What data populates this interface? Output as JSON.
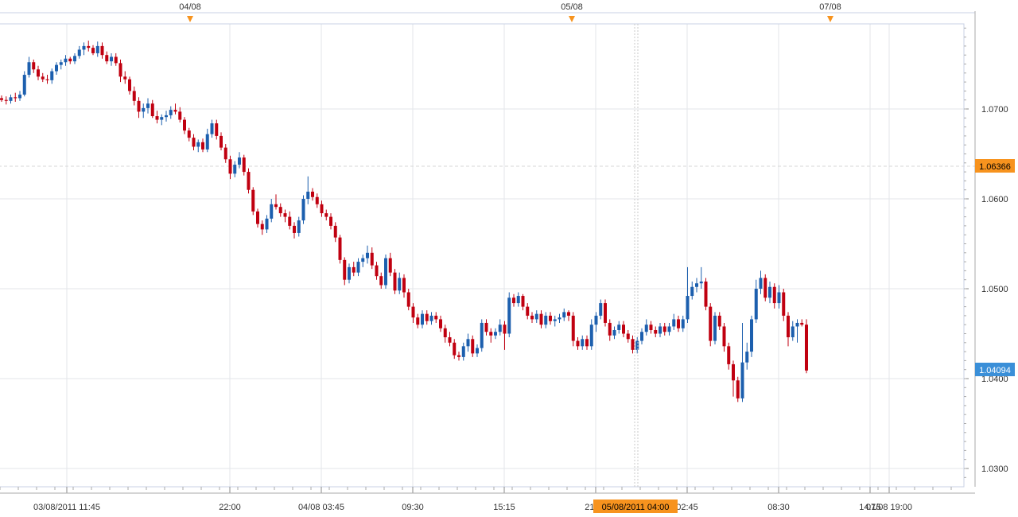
{
  "colors": {
    "background": "#ffffff",
    "plot_border": "#c8d2e6",
    "grid": "#e3e6ea",
    "up_candle": "#1c5fae",
    "down_candle": "#c00010",
    "last_price_badge": "#f7931e",
    "current_price_badge": "#3a8fd8",
    "event_marker": "#f7931e"
  },
  "top_axis": {
    "events": [
      {
        "label": "04/08",
        "time_h": 34.25
      },
      {
        "label": "05/08",
        "time_h": 59.25
      },
      {
        "label": "07/08",
        "time_h": 75.75
      }
    ]
  },
  "bottom_axis": {
    "ticks": [
      {
        "label": "03/08/2011 11:45",
        "time_h": 11.75
      },
      {
        "label": "22:00",
        "time_h": 22.0
      },
      {
        "label": "04/08 03:45",
        "time_h": 27.75
      },
      {
        "label": "09:30",
        "time_h": 33.5
      },
      {
        "label": "15:15",
        "time_h": 39.25
      },
      {
        "label": "21:00",
        "time_h": 45.0
      },
      {
        "label": "02:45",
        "time_h": 50.75
      },
      {
        "label": "08:30",
        "time_h": 56.5
      },
      {
        "label": "14:15",
        "time_h": 62.25
      },
      {
        "label": "07/08 19:00",
        "time_h": 67.0
      }
    ],
    "crosshair_label": "05/08/2011 04:00",
    "crosshair_time_h": 52.0
  },
  "price_badges": {
    "last": "1.06366",
    "current": "1.04094"
  },
  "chart_data": {
    "type": "candlestick",
    "ylim": [
      1.028,
      1.0795
    ],
    "grid": true,
    "y_ticks": [
      "1.0300",
      "1.0400",
      "1.0500",
      "1.0600",
      "1.0700"
    ],
    "series": [
      {
        "candles": [
          [
            1.0712,
            1.0715,
            1.0708,
            1.071
          ],
          [
            1.071,
            1.0714,
            1.0705,
            1.0709
          ],
          [
            1.0709,
            1.0716,
            1.0706,
            1.0713
          ],
          [
            1.0713,
            1.0718,
            1.0708,
            1.0712
          ],
          [
            1.0712,
            1.072,
            1.0709,
            1.0716
          ],
          [
            1.0716,
            1.0742,
            1.0714,
            1.0738
          ],
          [
            1.0738,
            1.0758,
            1.0735,
            1.0752
          ],
          [
            1.0752,
            1.0755,
            1.074,
            1.0744
          ],
          [
            1.0744,
            1.0748,
            1.0732,
            1.0736
          ],
          [
            1.0736,
            1.074,
            1.073,
            1.0733
          ],
          [
            1.0733,
            1.0738,
            1.0728,
            1.0732
          ],
          [
            1.0732,
            1.0745,
            1.0728,
            1.0742
          ],
          [
            1.0742,
            1.0752,
            1.0738,
            1.0749
          ],
          [
            1.0749,
            1.0755,
            1.0744,
            1.0752
          ],
          [
            1.0752,
            1.076,
            1.0748,
            1.0756
          ],
          [
            1.0756,
            1.0758,
            1.075,
            1.0753
          ],
          [
            1.0753,
            1.0762,
            1.075,
            1.0759
          ],
          [
            1.0759,
            1.077,
            1.0756,
            1.0766
          ],
          [
            1.0766,
            1.0774,
            1.076,
            1.077
          ],
          [
            1.077,
            1.0776,
            1.0764,
            1.0768
          ],
          [
            1.0768,
            1.0771,
            1.076,
            1.0762
          ],
          [
            1.0762,
            1.0775,
            1.0758,
            1.077
          ],
          [
            1.077,
            1.0774,
            1.0756,
            1.076
          ],
          [
            1.076,
            1.0764,
            1.075,
            1.0753
          ],
          [
            1.0753,
            1.0762,
            1.0748,
            1.0758
          ],
          [
            1.0758,
            1.0762,
            1.0748,
            1.0751
          ],
          [
            1.0751,
            1.0755,
            1.073,
            1.0736
          ],
          [
            1.0736,
            1.0742,
            1.0728,
            1.0733
          ],
          [
            1.0733,
            1.0736,
            1.0716,
            1.072
          ],
          [
            1.072,
            1.0725,
            1.0704,
            1.0709
          ],
          [
            1.0709,
            1.0713,
            1.069,
            1.0697
          ],
          [
            1.0697,
            1.0706,
            1.069,
            1.0701
          ],
          [
            1.0701,
            1.0712,
            1.0695,
            1.0706
          ],
          [
            1.0706,
            1.071,
            1.069,
            1.0692
          ],
          [
            1.0692,
            1.0698,
            1.0684,
            1.0688
          ],
          [
            1.0688,
            1.0694,
            1.0682,
            1.0691
          ],
          [
            1.0691,
            1.0698,
            1.0686,
            1.0693
          ],
          [
            1.0693,
            1.0703,
            1.0689,
            1.0699
          ],
          [
            1.0699,
            1.0706,
            1.0694,
            1.0697
          ],
          [
            1.0697,
            1.0702,
            1.0685,
            1.0688
          ],
          [
            1.0688,
            1.0691,
            1.0672,
            1.0676
          ],
          [
            1.0676,
            1.0679,
            1.0664,
            1.0668
          ],
          [
            1.0668,
            1.0672,
            1.0654,
            1.0658
          ],
          [
            1.0658,
            1.0666,
            1.0652,
            1.0663
          ],
          [
            1.0663,
            1.0667,
            1.0652,
            1.0655
          ],
          [
            1.0655,
            1.0678,
            1.0652,
            1.0672
          ],
          [
            1.0672,
            1.0688,
            1.0668,
            1.0684
          ],
          [
            1.0684,
            1.0688,
            1.0666,
            1.067
          ],
          [
            1.067,
            1.0674,
            1.0654,
            1.0657
          ],
          [
            1.0657,
            1.0661,
            1.064,
            1.0644
          ],
          [
            1.0644,
            1.0648,
            1.0622,
            1.0628
          ],
          [
            1.0628,
            1.0642,
            1.0624,
            1.0638
          ],
          [
            1.0638,
            1.0652,
            1.0634,
            1.0646
          ],
          [
            1.0646,
            1.0649,
            1.0626,
            1.063
          ],
          [
            1.063,
            1.0634,
            1.0606,
            1.061
          ],
          [
            1.061,
            1.0613,
            1.0582,
            1.0586
          ],
          [
            1.0586,
            1.0589,
            1.0568,
            1.0572
          ],
          [
            1.0572,
            1.0576,
            1.056,
            1.0566
          ],
          [
            1.0566,
            1.0582,
            1.0562,
            1.0578
          ],
          [
            1.0578,
            1.06,
            1.0574,
            1.0594
          ],
          [
            1.0594,
            1.0605,
            1.0588,
            1.0591
          ],
          [
            1.0591,
            1.0595,
            1.058,
            1.0584
          ],
          [
            1.0584,
            1.0588,
            1.0574,
            1.058
          ],
          [
            1.058,
            1.0586,
            1.0566,
            1.057
          ],
          [
            1.057,
            1.0574,
            1.0556,
            1.0562
          ],
          [
            1.0562,
            1.058,
            1.0558,
            1.0576
          ],
          [
            1.0576,
            1.0604,
            1.0572,
            1.06
          ],
          [
            1.06,
            1.0625,
            1.0594,
            1.0608
          ],
          [
            1.0608,
            1.0612,
            1.0598,
            1.0602
          ],
          [
            1.0602,
            1.0606,
            1.059,
            1.0594
          ],
          [
            1.0594,
            1.0598,
            1.058,
            1.0584
          ],
          [
            1.0584,
            1.0588,
            1.0576,
            1.058
          ],
          [
            1.058,
            1.0584,
            1.0566,
            1.057
          ],
          [
            1.057,
            1.0574,
            1.0552,
            1.0557
          ],
          [
            1.0557,
            1.056,
            1.0528,
            1.0532
          ],
          [
            1.0532,
            1.0535,
            1.0504,
            1.051
          ],
          [
            1.051,
            1.0528,
            1.0506,
            1.0524
          ],
          [
            1.0524,
            1.053,
            1.0514,
            1.0518
          ],
          [
            1.0518,
            1.0534,
            1.0514,
            1.053
          ],
          [
            1.053,
            1.0538,
            1.0524,
            1.0534
          ],
          [
            1.0534,
            1.0548,
            1.0528,
            1.054
          ],
          [
            1.054,
            1.0546,
            1.0522,
            1.0526
          ],
          [
            1.0526,
            1.053,
            1.051,
            1.0514
          ],
          [
            1.0514,
            1.0518,
            1.05,
            1.0504
          ],
          [
            1.0504,
            1.0538,
            1.05,
            1.0534
          ],
          [
            1.0534,
            1.054,
            1.0514,
            1.0518
          ],
          [
            1.0518,
            1.0522,
            1.0494,
            1.0498
          ],
          [
            1.0498,
            1.0518,
            1.0494,
            1.0512
          ],
          [
            1.0512,
            1.0516,
            1.049,
            1.0496
          ],
          [
            1.0496,
            1.05,
            1.0476,
            1.048
          ],
          [
            1.048,
            1.0484,
            1.0462,
            1.0468
          ],
          [
            1.0468,
            1.0472,
            1.0456,
            1.046
          ],
          [
            1.046,
            1.0476,
            1.0456,
            1.0472
          ],
          [
            1.0472,
            1.0476,
            1.046,
            1.0464
          ],
          [
            1.0464,
            1.0474,
            1.046,
            1.047
          ],
          [
            1.047,
            1.0474,
            1.0462,
            1.0466
          ],
          [
            1.0466,
            1.047,
            1.0452,
            1.0456
          ],
          [
            1.0456,
            1.046,
            1.044,
            1.0446
          ],
          [
            1.0446,
            1.0452,
            1.0436,
            1.044
          ],
          [
            1.044,
            1.0444,
            1.0422,
            1.0426
          ],
          [
            1.0426,
            1.043,
            1.042,
            1.0424
          ],
          [
            1.0424,
            1.044,
            1.042,
            1.0436
          ],
          [
            1.0436,
            1.045,
            1.043,
            1.0444
          ],
          [
            1.0444,
            1.0448,
            1.0424,
            1.0428
          ],
          [
            1.0428,
            1.0438,
            1.0424,
            1.0434
          ],
          [
            1.0434,
            1.0466,
            1.043,
            1.0462
          ],
          [
            1.0462,
            1.0466,
            1.0448,
            1.0452
          ],
          [
            1.0452,
            1.0456,
            1.044,
            1.0448
          ],
          [
            1.0448,
            1.0456,
            1.0444,
            1.0452
          ],
          [
            1.0452,
            1.0466,
            1.0448,
            1.046
          ],
          [
            1.046,
            1.0464,
            1.0432,
            1.045
          ],
          [
            1.045,
            1.0496,
            1.0446,
            1.049
          ],
          [
            1.049,
            1.0494,
            1.048,
            1.0484
          ],
          [
            1.0484,
            1.0496,
            1.048,
            1.0492
          ],
          [
            1.0492,
            1.0494,
            1.0476,
            1.048
          ],
          [
            1.048,
            1.0484,
            1.0466,
            1.047
          ],
          [
            1.047,
            1.0474,
            1.0462,
            1.0466
          ],
          [
            1.0466,
            1.0476,
            1.0462,
            1.0472
          ],
          [
            1.0472,
            1.0476,
            1.0456,
            1.046
          ],
          [
            1.046,
            1.0474,
            1.0456,
            1.047
          ],
          [
            1.047,
            1.0474,
            1.046,
            1.0464
          ],
          [
            1.0464,
            1.047,
            1.0458,
            1.0466
          ],
          [
            1.0466,
            1.0472,
            1.0462,
            1.0468
          ],
          [
            1.0468,
            1.0478,
            1.0464,
            1.0474
          ],
          [
            1.0474,
            1.0476,
            1.0464,
            1.047
          ],
          [
            1.047,
            1.0474,
            1.0436,
            1.0442
          ],
          [
            1.0442,
            1.0446,
            1.0432,
            1.0436
          ],
          [
            1.0436,
            1.0448,
            1.0432,
            1.0444
          ],
          [
            1.0444,
            1.0448,
            1.0432,
            1.0436
          ],
          [
            1.0436,
            1.0466,
            1.0432,
            1.046
          ],
          [
            1.046,
            1.0474,
            1.0452,
            1.047
          ],
          [
            1.047,
            1.0488,
            1.0466,
            1.0484
          ],
          [
            1.0484,
            1.0488,
            1.0458,
            1.0462
          ],
          [
            1.0462,
            1.0466,
            1.0442,
            1.0448
          ],
          [
            1.0448,
            1.0458,
            1.0444,
            1.0454
          ],
          [
            1.0454,
            1.0464,
            1.045,
            1.046
          ],
          [
            1.046,
            1.0464,
            1.0446,
            1.045
          ],
          [
            1.045,
            1.0454,
            1.044,
            1.0444
          ],
          [
            1.0444,
            1.0448,
            1.0428,
            1.0432
          ],
          [
            1.0432,
            1.0446,
            1.0428,
            1.0442
          ],
          [
            1.0442,
            1.0456,
            1.0438,
            1.0452
          ],
          [
            1.0452,
            1.0466,
            1.0448,
            1.046
          ],
          [
            1.046,
            1.0464,
            1.045,
            1.0454
          ],
          [
            1.0454,
            1.0458,
            1.0446,
            1.045
          ],
          [
            1.045,
            1.0462,
            1.0446,
            1.0458
          ],
          [
            1.0458,
            1.0462,
            1.0448,
            1.0452
          ],
          [
            1.0452,
            1.0462,
            1.0448,
            1.0458
          ],
          [
            1.0458,
            1.0472,
            1.0454,
            1.0466
          ],
          [
            1.0466,
            1.047,
            1.0452,
            1.0456
          ],
          [
            1.0456,
            1.047,
            1.0452,
            1.0466
          ],
          [
            1.0466,
            1.0524,
            1.0462,
            1.0492
          ],
          [
            1.0492,
            1.0508,
            1.0488,
            1.0502
          ],
          [
            1.0502,
            1.0512,
            1.0496,
            1.0506
          ],
          [
            1.0506,
            1.0524,
            1.05,
            1.0508
          ],
          [
            1.0508,
            1.0512,
            1.0476,
            1.048
          ],
          [
            1.048,
            1.0484,
            1.0436,
            1.0442
          ],
          [
            1.0442,
            1.0474,
            1.0438,
            1.047
          ],
          [
            1.047,
            1.0474,
            1.0454,
            1.0458
          ],
          [
            1.0458,
            1.0462,
            1.043,
            1.0436
          ],
          [
            1.0436,
            1.044,
            1.041,
            1.0416
          ],
          [
            1.0416,
            1.042,
            1.038,
            1.0398
          ],
          [
            1.0398,
            1.0402,
            1.0374,
            1.0378
          ],
          [
            1.0378,
            1.0462,
            1.0374,
            1.0418
          ],
          [
            1.0418,
            1.044,
            1.041,
            1.043
          ],
          [
            1.043,
            1.047,
            1.0424,
            1.0466
          ],
          [
            1.0466,
            1.051,
            1.0462,
            1.05
          ],
          [
            1.05,
            1.052,
            1.0494,
            1.0512
          ],
          [
            1.0512,
            1.0516,
            1.0486,
            1.049
          ],
          [
            1.049,
            1.0508,
            1.0484,
            1.0502
          ],
          [
            1.0502,
            1.0506,
            1.0478,
            1.0484
          ],
          [
            1.0484,
            1.0504,
            1.0478,
            1.0496
          ],
          [
            1.0496,
            1.05,
            1.0464,
            1.047
          ],
          [
            1.047,
            1.0474,
            1.0436,
            1.0446
          ],
          [
            1.0446,
            1.0464,
            1.0442,
            1.0458
          ],
          [
            1.0458,
            1.0466,
            1.044,
            1.0462
          ],
          [
            1.0462,
            1.0466,
            1.0458,
            1.046
          ],
          [
            1.046,
            1.0466,
            1.0406,
            1.0409
          ]
        ]
      }
    ]
  }
}
